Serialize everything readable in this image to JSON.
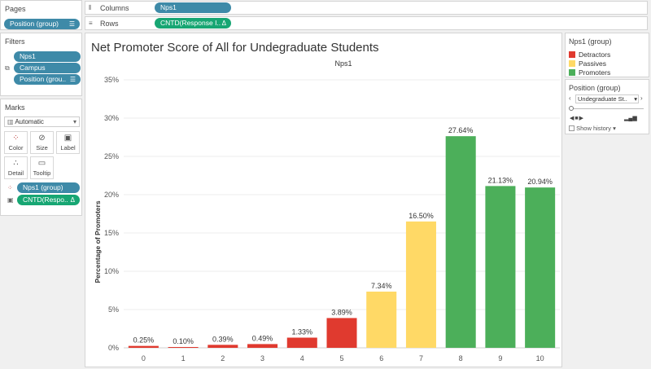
{
  "pages": {
    "title": "Pages",
    "pill": "Position (group)"
  },
  "filters": {
    "title": "Filters",
    "items": [
      "Nps1",
      "Campus",
      "Position (grou.."
    ]
  },
  "marks": {
    "title": "Marks",
    "type": "Automatic",
    "buttons": [
      "Color",
      "Size",
      "Label",
      "Detail",
      "Tooltip"
    ],
    "fields": [
      {
        "label": "Nps1 (group)"
      },
      {
        "label": "CNTD(Respo..",
        "tail": "Δ"
      }
    ]
  },
  "shelves": {
    "columns_label": "Columns",
    "columns_pill": "Nps1",
    "rows_label": "Rows",
    "rows_pill": "CNTD(Response I..",
    "rows_tail": "Δ"
  },
  "legend": {
    "title": "Nps1 (group)",
    "items": [
      {
        "label": "Detractors",
        "color": "#e03a2f"
      },
      {
        "label": "Passives",
        "color": "#ffd966"
      },
      {
        "label": "Promoters",
        "color": "#4caf5a"
      }
    ]
  },
  "position_filter": {
    "title": "Position (group)",
    "value": "Undegraduate St..",
    "show_history": "Show history"
  },
  "chart_data": {
    "type": "bar",
    "title": "Net Promoter Score of All for Undegraduate Students",
    "header": "Nps1",
    "ylabel": "Percentage of Promoters",
    "categories": [
      "0",
      "1",
      "2",
      "3",
      "4",
      "5",
      "6",
      "7",
      "8",
      "9",
      "10"
    ],
    "values": [
      0.25,
      0.1,
      0.39,
      0.49,
      1.33,
      3.89,
      7.34,
      16.5,
      27.64,
      21.13,
      20.94
    ],
    "value_labels": [
      "0.25%",
      "0.10%",
      "0.39%",
      "0.49%",
      "1.33%",
      "3.89%",
      "7.34%",
      "16.50%",
      "27.64%",
      "21.13%",
      "20.94%"
    ],
    "groups": [
      "Detractors",
      "Detractors",
      "Detractors",
      "Detractors",
      "Detractors",
      "Detractors",
      "Passives",
      "Passives",
      "Promoters",
      "Promoters",
      "Promoters"
    ],
    "yticks": [
      "0%",
      "5%",
      "10%",
      "15%",
      "20%",
      "25%",
      "30%",
      "35%"
    ],
    "ylim": [
      0,
      35
    ],
    "grid": true
  }
}
